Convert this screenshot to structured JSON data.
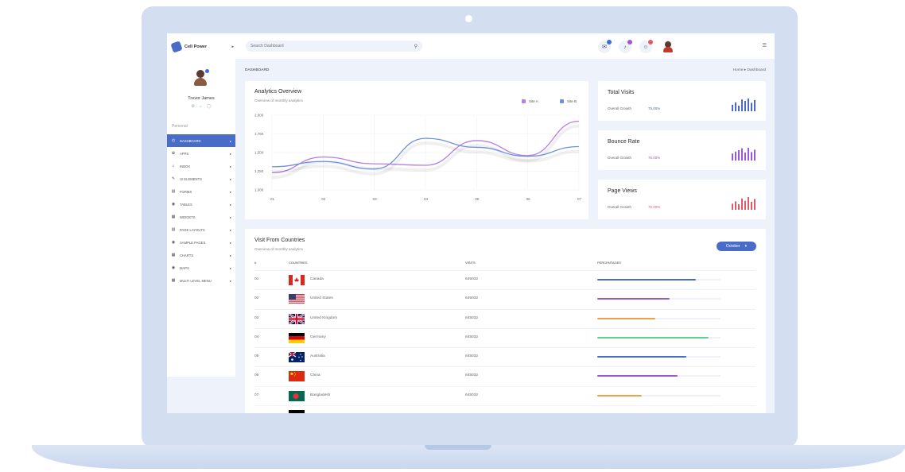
{
  "brand": {
    "name": "Cell Power"
  },
  "profile": {
    "name": "Trevor James"
  },
  "sidebar": {
    "section_label": "Personal",
    "items": [
      {
        "label": "DASHBOARD",
        "icon": "dashboard-icon",
        "glyph": "◴"
      },
      {
        "label": "APPS",
        "icon": "apps-icon",
        "glyph": "✿"
      },
      {
        "label": "INBOX",
        "icon": "inbox-icon",
        "glyph": "⌂"
      },
      {
        "label": "UI ELEMENTS",
        "icon": "ui-elements-icon",
        "glyph": "✎"
      },
      {
        "label": "FORMS",
        "icon": "forms-icon",
        "glyph": "▤"
      },
      {
        "label": "TABLES",
        "icon": "tables-icon",
        "glyph": "◉"
      },
      {
        "label": "WIDGETS",
        "icon": "widgets-icon",
        "glyph": "▦"
      },
      {
        "label": "PAGE LAYOUTS",
        "icon": "page-layouts-icon",
        "glyph": "▤"
      },
      {
        "label": "SAMPLE PAGES",
        "icon": "sample-pages-icon",
        "glyph": "◉"
      },
      {
        "label": "CHARTS",
        "icon": "charts-icon",
        "glyph": "▦"
      },
      {
        "label": "MAPS",
        "icon": "maps-icon",
        "glyph": "◉"
      },
      {
        "label": "MULTI LEVEL MENU",
        "icon": "multi-level-menu-icon",
        "glyph": "▦"
      }
    ]
  },
  "topbar": {
    "search_placeholder": "Search Dashboard",
    "notifications": [
      {
        "icon": "chat-icon",
        "badge_color": "#3d6de0"
      },
      {
        "icon": "bell-icon",
        "badge_color": "#9b59d6"
      },
      {
        "icon": "user-requests-icon",
        "badge_color": "#e05a6a"
      }
    ]
  },
  "page": {
    "title": "DASHBOARD",
    "breadcrumb": "Home ▸ Dashboard"
  },
  "analytics": {
    "title": "Analytics Overview",
    "subtitle": "Overview of monthly analytics"
  },
  "chart_data": {
    "type": "line",
    "title": "Analytics Overview",
    "x": [
      "01",
      "02",
      "03",
      "04",
      "05",
      "06",
      "07"
    ],
    "y_ticks": [
      "2,000",
      "1,750",
      "1,500",
      "1,250",
      "1,000"
    ],
    "ylim": [
      1000,
      2000
    ],
    "series": [
      {
        "name": "Site A",
        "color": "#b57ee8",
        "values": [
          1230,
          1440,
          1350,
          1330,
          1660,
          1460,
          1920
        ]
      },
      {
        "name": "Site B",
        "color": "#6f8fe0",
        "values": [
          1310,
          1380,
          1280,
          1690,
          1570,
          1450,
          1580
        ]
      }
    ]
  },
  "stats": [
    {
      "title": "Total Visits",
      "label": "Overall Growth",
      "value": "75.00%",
      "color": "#4a6cc9",
      "bars": [
        0.35,
        0.6,
        0.25,
        0.9,
        0.75,
        1.0,
        0.55,
        0.85
      ]
    },
    {
      "title": "Bounce Rate",
      "label": "Overall Growth",
      "value": "75.00%",
      "color": "#9b59d6",
      "bars": [
        0.4,
        0.6,
        0.75,
        0.95,
        0.5,
        1.0,
        0.55,
        0.8
      ]
    },
    {
      "title": "Page Views",
      "label": "Overall Growth",
      "value": "75.00%",
      "color": "#e05a6a",
      "bars": [
        0.3,
        0.55,
        0.25,
        0.85,
        0.6,
        1.0,
        0.5,
        0.8
      ]
    }
  ],
  "countries": {
    "title": "Visit From Countries",
    "subtitle": "Overview of monthly analytics",
    "month_button": "October",
    "headers": {
      "num": "#",
      "country": "COUNTRIES",
      "visits": "VISITS",
      "percentage": "PERCENTAGES"
    },
    "rows": [
      {
        "num": "01",
        "country": "Canada",
        "visits": "645032",
        "percent": 80,
        "bar_color": "#4a6cc9",
        "flag": "canada"
      },
      {
        "num": "02",
        "country": "United States",
        "visits": "645032",
        "percent": 59,
        "bar_color": "#9b59d6",
        "flag": "usa"
      },
      {
        "num": "03",
        "country": "United Kingdom",
        "visits": "645032",
        "percent": 47,
        "bar_color": "#f0a04b",
        "flag": "uk"
      },
      {
        "num": "04",
        "country": "Germany",
        "visits": "645032",
        "percent": 90,
        "bar_color": "#5fd38d",
        "flag": "germany"
      },
      {
        "num": "05",
        "country": "Australia",
        "visits": "645032",
        "percent": 72,
        "bar_color": "#4a6cc9",
        "flag": "australia"
      },
      {
        "num": "06",
        "country": "China",
        "visits": "645032",
        "percent": 65,
        "bar_color": "#9b59d6",
        "flag": "china"
      },
      {
        "num": "07",
        "country": "Bangladesh",
        "visits": "645032",
        "percent": 36,
        "bar_color": "#f0a04b",
        "flag": "bangladesh"
      }
    ]
  }
}
